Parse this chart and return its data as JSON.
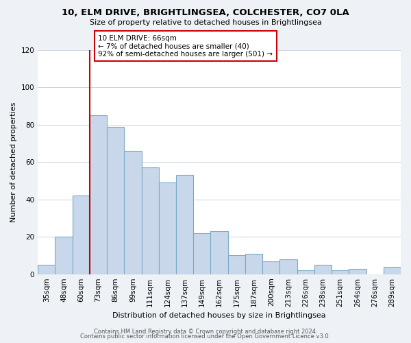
{
  "title": "10, ELM DRIVE, BRIGHTLINGSEA, COLCHESTER, CO7 0LA",
  "subtitle": "Size of property relative to detached houses in Brightlingsea",
  "xlabel": "Distribution of detached houses by size in Brightlingsea",
  "ylabel": "Number of detached properties",
  "bar_labels": [
    "35sqm",
    "48sqm",
    "60sqm",
    "73sqm",
    "86sqm",
    "99sqm",
    "111sqm",
    "124sqm",
    "137sqm",
    "149sqm",
    "162sqm",
    "175sqm",
    "187sqm",
    "200sqm",
    "213sqm",
    "226sqm",
    "238sqm",
    "251sqm",
    "264sqm",
    "276sqm",
    "289sqm"
  ],
  "bar_values": [
    5,
    20,
    42,
    85,
    79,
    66,
    57,
    49,
    53,
    22,
    23,
    10,
    11,
    7,
    8,
    2,
    5,
    2,
    3,
    0,
    4
  ],
  "bar_color": "#c8d8ea",
  "bar_edge_color": "#7aaac8",
  "highlight_line_color": "#cc0000",
  "annotation_line1": "10 ELM DRIVE: 66sqm",
  "annotation_line2": "← 7% of detached houses are smaller (40)",
  "annotation_line3": "92% of semi-detached houses are larger (501) →",
  "annotation_box_color": "#ffffff",
  "annotation_box_edge": "#cc0000",
  "ylim": [
    0,
    120
  ],
  "yticks": [
    0,
    20,
    40,
    60,
    80,
    100,
    120
  ],
  "footer1": "Contains HM Land Registry data © Crown copyright and database right 2024.",
  "footer2": "Contains public sector information licensed under the Open Government Licence v3.0.",
  "background_color": "#eef2f6",
  "plot_bg_color": "#ffffff",
  "grid_color": "#c8d4de",
  "title_fontsize": 9.5,
  "subtitle_fontsize": 8.0,
  "axis_label_fontsize": 8.0,
  "tick_fontsize": 7.5,
  "footer_fontsize": 6.0
}
